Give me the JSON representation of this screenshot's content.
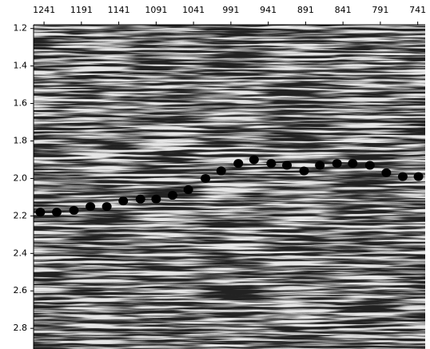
{
  "chart_data": {
    "type": "scatter",
    "x": [
      1246,
      1224,
      1201,
      1179,
      1157,
      1135,
      1112,
      1091,
      1069,
      1048,
      1025,
      1004,
      981,
      960,
      937,
      916,
      893,
      872,
      849,
      828,
      805,
      783,
      761,
      740
    ],
    "values": [
      2.18,
      2.18,
      2.17,
      2.15,
      2.15,
      2.12,
      2.11,
      2.11,
      2.09,
      2.06,
      2.0,
      1.96,
      1.92,
      1.9,
      1.92,
      1.93,
      1.96,
      1.93,
      1.92,
      1.92,
      1.93,
      1.97,
      1.99,
      1.99
    ],
    "color": "#000000",
    "xlim": [
      1255,
      731
    ],
    "xticks": [
      1241,
      1191,
      1141,
      1091,
      1041,
      991,
      941,
      891,
      841,
      791,
      741
    ],
    "ylim": [
      1.18,
      2.91
    ],
    "yticks": [
      1.2,
      1.4,
      1.6,
      1.8,
      {
        "value": 2,
        "label": "2.0"
      },
      2.2,
      2.4,
      2.6,
      2.8
    ]
  }
}
